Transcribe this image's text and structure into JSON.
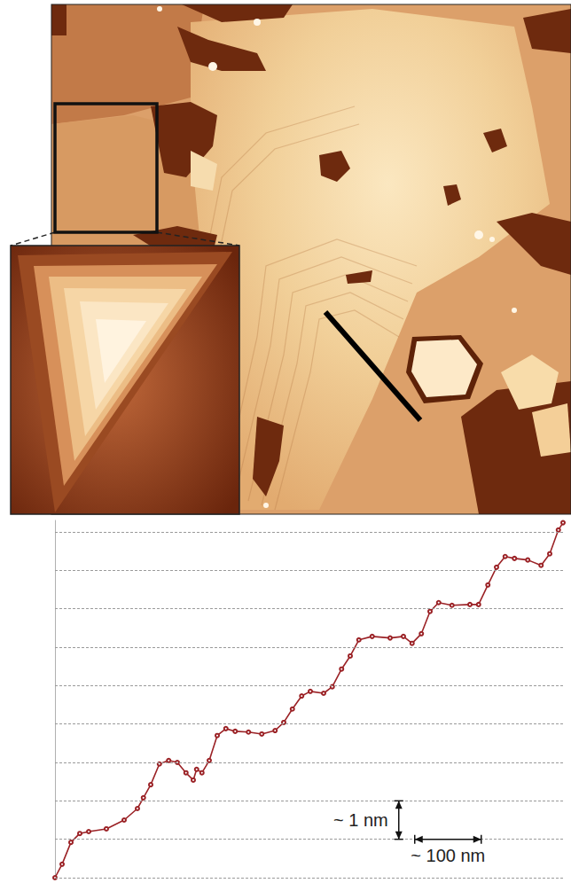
{
  "chart_data": {
    "type": "line",
    "x": [
      0,
      10.7,
      24.0,
      37.3,
      50.7,
      77.3,
      104,
      124,
      133,
      144,
      157,
      171,
      184,
      197,
      208,
      213,
      221,
      232,
      244,
      257,
      271,
      291,
      311,
      331,
      344,
      357,
      371,
      384,
      404,
      417,
      431,
      444,
      457,
      477,
      504,
      524,
      537,
      551,
      564,
      577,
      597,
      624,
      637,
      651,
      664,
      677,
      691,
      711,
      731,
      744,
      757,
      764
    ],
    "values": [
      0,
      0.35,
      0.92,
      1.15,
      1.2,
      1.27,
      1.5,
      1.8,
      2.08,
      2.42,
      2.96,
      3.05,
      3.0,
      2.73,
      2.54,
      2.82,
      2.73,
      3.05,
      3.7,
      3.88,
      3.81,
      3.79,
      3.74,
      3.83,
      4.04,
      4.39,
      4.73,
      4.85,
      4.8,
      4.97,
      5.43,
      5.77,
      6.19,
      6.28,
      6.24,
      6.28,
      6.1,
      6.35,
      6.93,
      7.16,
      7.09,
      7.11,
      7.11,
      7.62,
      8.08,
      8.36,
      8.31,
      8.27,
      8.13,
      8.43,
      9.05,
      9.24
    ],
    "color": "#9b2226",
    "marker": "circle",
    "xlim": [
      0,
      764
    ],
    "ylim": [
      0,
      9.3
    ],
    "yticks": [
      0,
      1,
      2,
      3,
      4,
      5,
      6,
      7,
      8,
      9
    ],
    "grid": true,
    "tick_labels": false,
    "annotations": [
      {
        "text": "~ 1 nm",
        "x": 517,
        "y": [
          1,
          2
        ]
      },
      {
        "text": "~ 100 nm",
        "x": [
          541,
          641
        ],
        "y": 1
      }
    ]
  }
}
